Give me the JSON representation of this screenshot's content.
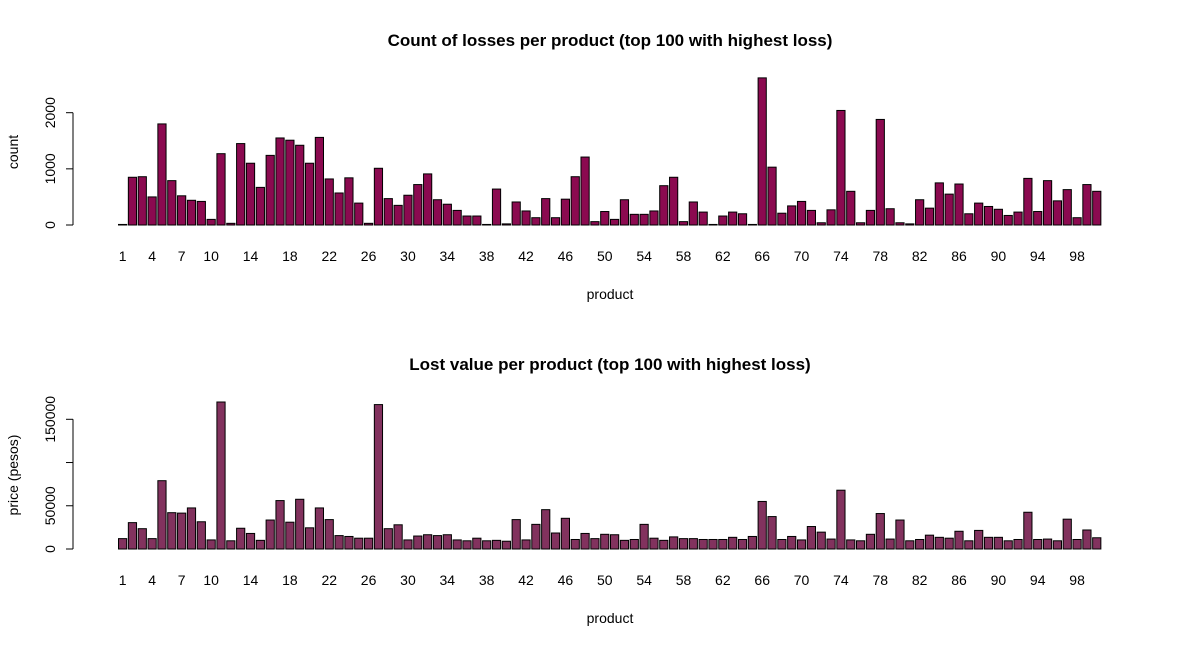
{
  "chart_data": [
    {
      "type": "bar",
      "title": "Count of losses per product (top 100 with highest loss)",
      "xlabel": "product",
      "ylabel": "count",
      "ylim": [
        0,
        2600
      ],
      "y_ticks": [
        0,
        1000,
        2000
      ],
      "y_tick_labels": [
        "0",
        "1000",
        "2000"
      ],
      "x_tick_labels": [
        "1",
        "4",
        "7",
        "10",
        "14",
        "18",
        "22",
        "26",
        "30",
        "34",
        "38",
        "42",
        "46",
        "50",
        "54",
        "58",
        "62",
        "66",
        "70",
        "74",
        "78",
        "82",
        "86",
        "90",
        "94",
        "98"
      ],
      "x_tick_positions": [
        1,
        4,
        7,
        10,
        14,
        18,
        22,
        26,
        30,
        34,
        38,
        42,
        46,
        50,
        54,
        58,
        62,
        66,
        70,
        74,
        78,
        82,
        86,
        90,
        94,
        98
      ],
      "bar_color": "#8b0a50",
      "categories": [
        1,
        2,
        3,
        4,
        5,
        6,
        7,
        8,
        9,
        10,
        11,
        12,
        13,
        14,
        15,
        16,
        17,
        18,
        19,
        20,
        21,
        22,
        23,
        24,
        25,
        26,
        27,
        28,
        29,
        30,
        31,
        32,
        33,
        34,
        35,
        36,
        37,
        38,
        39,
        40,
        41,
        42,
        43,
        44,
        45,
        46,
        47,
        48,
        49,
        50,
        51,
        52,
        53,
        54,
        55,
        56,
        57,
        58,
        59,
        60,
        61,
        62,
        63,
        64,
        65,
        66,
        67,
        68,
        69,
        70,
        71,
        72,
        73,
        74,
        75,
        76,
        77,
        78,
        79,
        80,
        81,
        82,
        83,
        84,
        85,
        86,
        87,
        88,
        89,
        90,
        91,
        92,
        93,
        94,
        95,
        96,
        97,
        98,
        99,
        100
      ],
      "values": [
        10,
        850,
        860,
        500,
        1800,
        790,
        520,
        440,
        420,
        100,
        1270,
        30,
        1450,
        1100,
        670,
        1240,
        1550,
        1510,
        1420,
        1100,
        1560,
        820,
        570,
        840,
        390,
        30,
        1010,
        470,
        350,
        530,
        720,
        910,
        450,
        370,
        260,
        160,
        160,
        10,
        640,
        20,
        410,
        250,
        130,
        470,
        130,
        460,
        860,
        1210,
        60,
        240,
        100,
        450,
        190,
        190,
        250,
        700,
        850,
        60,
        410,
        230,
        10,
        160,
        230,
        200,
        10,
        2620,
        1030,
        210,
        340,
        420,
        260,
        40,
        270,
        2040,
        600,
        40,
        260,
        1880,
        290,
        40,
        20,
        450,
        300,
        750,
        550,
        730,
        200,
        390,
        330,
        280,
        170,
        230,
        830,
        240,
        790,
        430,
        630,
        130,
        720,
        600
      ]
    },
    {
      "type": "bar",
      "title": "Lost value per product (top 100 with highest loss)",
      "xlabel": "product",
      "ylabel": "price (pesos)",
      "ylim": [
        0,
        170000
      ],
      "y_ticks": [
        0,
        50000,
        100000,
        150000
      ],
      "y_tick_labels": [
        "0",
        "50000",
        "",
        "150000"
      ],
      "x_tick_labels": [
        "1",
        "4",
        "7",
        "10",
        "14",
        "18",
        "22",
        "26",
        "30",
        "34",
        "38",
        "42",
        "46",
        "50",
        "54",
        "58",
        "62",
        "66",
        "70",
        "74",
        "78",
        "82",
        "86",
        "90",
        "94",
        "98"
      ],
      "x_tick_positions": [
        1,
        4,
        7,
        10,
        14,
        18,
        22,
        26,
        30,
        34,
        38,
        42,
        46,
        50,
        54,
        58,
        62,
        66,
        70,
        74,
        78,
        82,
        86,
        90,
        94,
        98
      ],
      "bar_color": "#82325e",
      "categories": [
        1,
        2,
        3,
        4,
        5,
        6,
        7,
        8,
        9,
        10,
        11,
        12,
        13,
        14,
        15,
        16,
        17,
        18,
        19,
        20,
        21,
        22,
        23,
        24,
        25,
        26,
        27,
        28,
        29,
        30,
        31,
        32,
        33,
        34,
        35,
        36,
        37,
        38,
        39,
        40,
        41,
        42,
        43,
        44,
        45,
        46,
        47,
        48,
        49,
        50,
        51,
        52,
        53,
        54,
        55,
        56,
        57,
        58,
        59,
        60,
        61,
        62,
        63,
        64,
        65,
        66,
        67,
        68,
        69,
        70,
        71,
        72,
        73,
        74,
        75,
        76,
        77,
        78,
        79,
        80,
        81,
        82,
        83,
        84,
        85,
        86,
        87,
        88,
        89,
        90,
        91,
        92,
        93,
        94,
        95,
        96,
        97,
        98,
        99,
        100
      ],
      "values": [
        12000,
        30500,
        23500,
        12000,
        79000,
        42000,
        41500,
        47500,
        31500,
        10500,
        170000,
        9500,
        24000,
        18000,
        10000,
        33500,
        56000,
        31000,
        57500,
        24500,
        47500,
        34000,
        15500,
        14500,
        12500,
        12500,
        167000,
        23500,
        28000,
        10500,
        15000,
        16500,
        15500,
        16500,
        10500,
        9500,
        12500,
        9500,
        10000,
        9000,
        34000,
        10500,
        28500,
        45500,
        18500,
        35500,
        11000,
        18000,
        12000,
        17000,
        16500,
        10000,
        11000,
        28500,
        12500,
        10000,
        14000,
        12000,
        12000,
        11000,
        11000,
        11000,
        13500,
        11000,
        14500,
        55000,
        37500,
        11000,
        14500,
        10500,
        26000,
        19500,
        11500,
        68000,
        10500,
        9500,
        17000,
        41000,
        11500,
        33500,
        9500,
        11000,
        16000,
        13500,
        12500,
        20500,
        9500,
        21500,
        13500,
        13500,
        9500,
        11000,
        42500,
        11000,
        11500,
        9500,
        34500,
        11000,
        22000,
        13000
      ]
    }
  ]
}
